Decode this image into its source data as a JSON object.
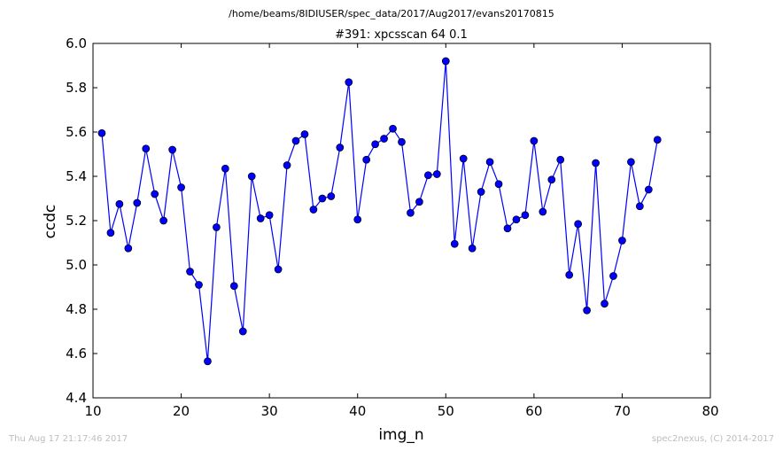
{
  "header": {
    "path": "/home/beams/8IDIUSER/spec_data/2017/Aug2017/evans20170815"
  },
  "footer": {
    "timestamp": "Thu Aug 17 21:17:46 2017",
    "credit": "spec2nexus, (C) 2014-2017"
  },
  "colors": {
    "line": "#0000ff",
    "marker_fill": "#0000ff",
    "marker_edge": "#000000",
    "footer_text": "#bdbdbd"
  },
  "chart_data": {
    "type": "line",
    "title": "#391: xpcsscan 64 0.1",
    "xlabel": "img_n",
    "ylabel": "ccdc",
    "xlim": [
      10,
      80
    ],
    "ylim": [
      4.4,
      6.0
    ],
    "xticks": [
      "10",
      "20",
      "30",
      "40",
      "50",
      "60",
      "70",
      "80"
    ],
    "yticks": [
      "4.4",
      "4.6",
      "4.8",
      "5.0",
      "5.2",
      "5.4",
      "5.6",
      "5.8",
      "6.0"
    ],
    "grid": false,
    "legend": "none",
    "markers": "circle",
    "series": [
      {
        "x": [
          11,
          12,
          13,
          14,
          15,
          16,
          17,
          18,
          19,
          20,
          21,
          22,
          23,
          24,
          25,
          26,
          27,
          28,
          29,
          30,
          31,
          32,
          33,
          34,
          35,
          36,
          37,
          38,
          39,
          40,
          41,
          42,
          43,
          44,
          45,
          46,
          47,
          48,
          49,
          50,
          51,
          52,
          53,
          54,
          55,
          56,
          57,
          58,
          59,
          60,
          61,
          62,
          63,
          64,
          65,
          66,
          67,
          68,
          69,
          70,
          71,
          72,
          73,
          74
        ],
        "y": [
          5.595,
          5.145,
          5.275,
          5.075,
          5.28,
          5.525,
          5.32,
          5.2,
          5.52,
          5.35,
          4.97,
          4.91,
          4.565,
          5.17,
          5.435,
          4.905,
          4.7,
          5.4,
          5.21,
          5.225,
          4.98,
          5.45,
          5.56,
          5.59,
          5.25,
          5.3,
          5.31,
          5.53,
          5.825,
          5.205,
          5.475,
          5.545,
          5.57,
          5.615,
          5.555,
          5.235,
          5.285,
          5.405,
          5.41,
          5.92,
          5.095,
          5.48,
          5.075,
          5.33,
          5.465,
          5.365,
          5.165,
          5.205,
          5.225,
          5.56,
          5.24,
          5.385,
          5.475,
          4.955,
          5.185,
          4.795,
          5.46,
          4.825,
          4.95,
          5.11,
          5.465,
          5.265,
          5.34,
          5.565
        ]
      }
    ]
  }
}
